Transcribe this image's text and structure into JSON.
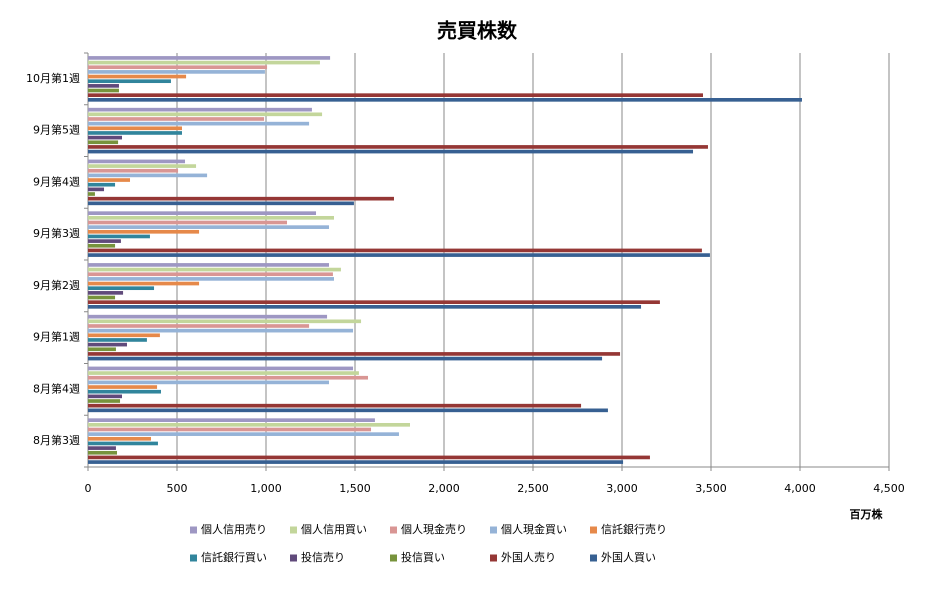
{
  "chart_data": {
    "type": "hbar",
    "title": "売買株数",
    "x_label": "百万株",
    "categories": [
      "10月第1週",
      "9月第5週",
      "9月第4週",
      "9月第3週",
      "9月第2週",
      "9月第1週",
      "8月第4週",
      "8月第3週"
    ],
    "series": [
      {
        "name": "個人信用売り",
        "color": "#9e97c3",
        "values": [
          1360,
          1258,
          545,
          1281,
          1354,
          1343,
          1489,
          1612
        ]
      },
      {
        "name": "個人信用買い",
        "color": "#c3d69b",
        "values": [
          1303,
          1315,
          607,
          1382,
          1421,
          1534,
          1522,
          1809
        ]
      },
      {
        "name": "個人現金売り",
        "color": "#d99694",
        "values": [
          1006,
          989,
          506,
          1118,
          1376,
          1242,
          1573,
          1590
        ]
      },
      {
        "name": "個人現金買い",
        "color": "#95b3d7",
        "values": [
          994,
          1242,
          669,
          1354,
          1382,
          1489,
          1354,
          1747
        ]
      },
      {
        "name": "信託銀行売り",
        "color": "#e6894a",
        "values": [
          551,
          528,
          236,
          624,
          624,
          404,
          388,
          354
        ]
      },
      {
        "name": "信託銀行買い",
        "color": "#31859c",
        "values": [
          466,
          528,
          152,
          348,
          371,
          331,
          410,
          393
        ]
      },
      {
        "name": "投信売り",
        "color": "#604a7b",
        "values": [
          174,
          191,
          90,
          185,
          197,
          219,
          191,
          157
        ]
      },
      {
        "name": "投信買い",
        "color": "#77933c",
        "values": [
          174,
          169,
          39,
          152,
          152,
          157,
          180,
          163
        ]
      },
      {
        "name": "外国人売り",
        "color": "#953735",
        "values": [
          3455,
          3483,
          1719,
          3449,
          3213,
          2989,
          2770,
          3157
        ]
      },
      {
        "name": "外国人買い",
        "color": "#376092",
        "values": [
          4011,
          3399,
          1494,
          3494,
          3107,
          2888,
          2921,
          3006
        ]
      }
    ],
    "xlim": [
      0,
      4500
    ],
    "xticks": [
      0,
      500,
      {
        "value": 1000,
        "label": "1,000"
      },
      {
        "value": 1500,
        "label": "1,500"
      },
      {
        "value": 2000,
        "label": "2,000"
      },
      {
        "value": 2500,
        "label": "2,500"
      },
      {
        "value": 3000,
        "label": "3,000"
      },
      {
        "value": 3500,
        "label": "3,500"
      },
      {
        "value": 4000,
        "label": "4,000"
      },
      {
        "value": 4500,
        "label": "4,500"
      }
    ],
    "grid": true
  }
}
